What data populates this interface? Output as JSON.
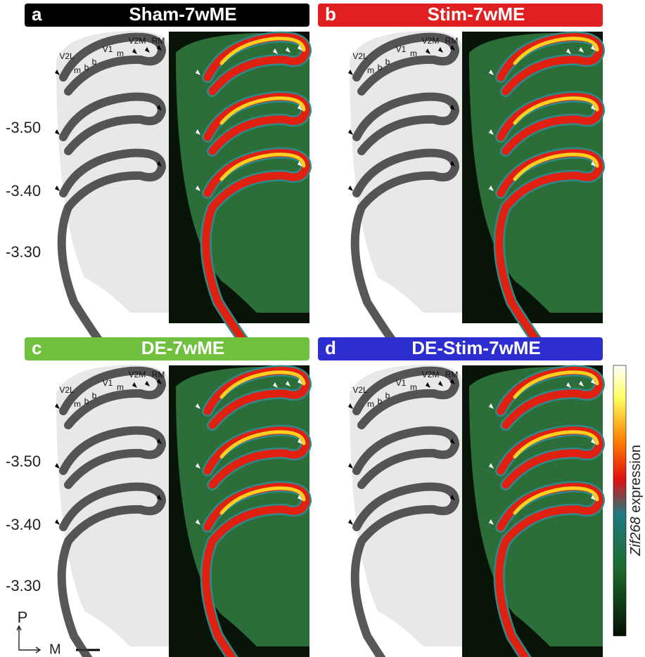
{
  "panels": [
    {
      "letter": "a",
      "title": "Sham-7wME",
      "color": "#000000",
      "region_labels": [
        "V2L",
        "m",
        "b",
        "b",
        "V1",
        "m",
        "V2M",
        "RM"
      ],
      "levels": [
        "-3.50",
        "-3.40",
        "-3.30"
      ]
    },
    {
      "letter": "b",
      "title": "Stim-7wME",
      "color": "#e02020",
      "region_labels": [
        "V2L",
        "m",
        "b",
        "b",
        "V1",
        "m",
        "V2M",
        "RM"
      ]
    },
    {
      "letter": "c",
      "title": "DE-7wME",
      "color": "#70c040",
      "region_labels": [
        "V2L",
        "m",
        "b",
        "b",
        "V1",
        "m",
        "V2M",
        "RM"
      ],
      "levels": [
        "-3.50",
        "-3.40",
        "-3.30"
      ]
    },
    {
      "letter": "d",
      "title": "DE-Stim-7wME",
      "color": "#2c2ed0",
      "region_labels": [
        "V2L",
        "m",
        "b",
        "b",
        "V1",
        "m",
        "V2M",
        "RM"
      ]
    }
  ],
  "colorbar": {
    "gene": "Zif268",
    "label": "expression"
  },
  "orientation": {
    "posterior": "P",
    "medial": "M"
  }
}
